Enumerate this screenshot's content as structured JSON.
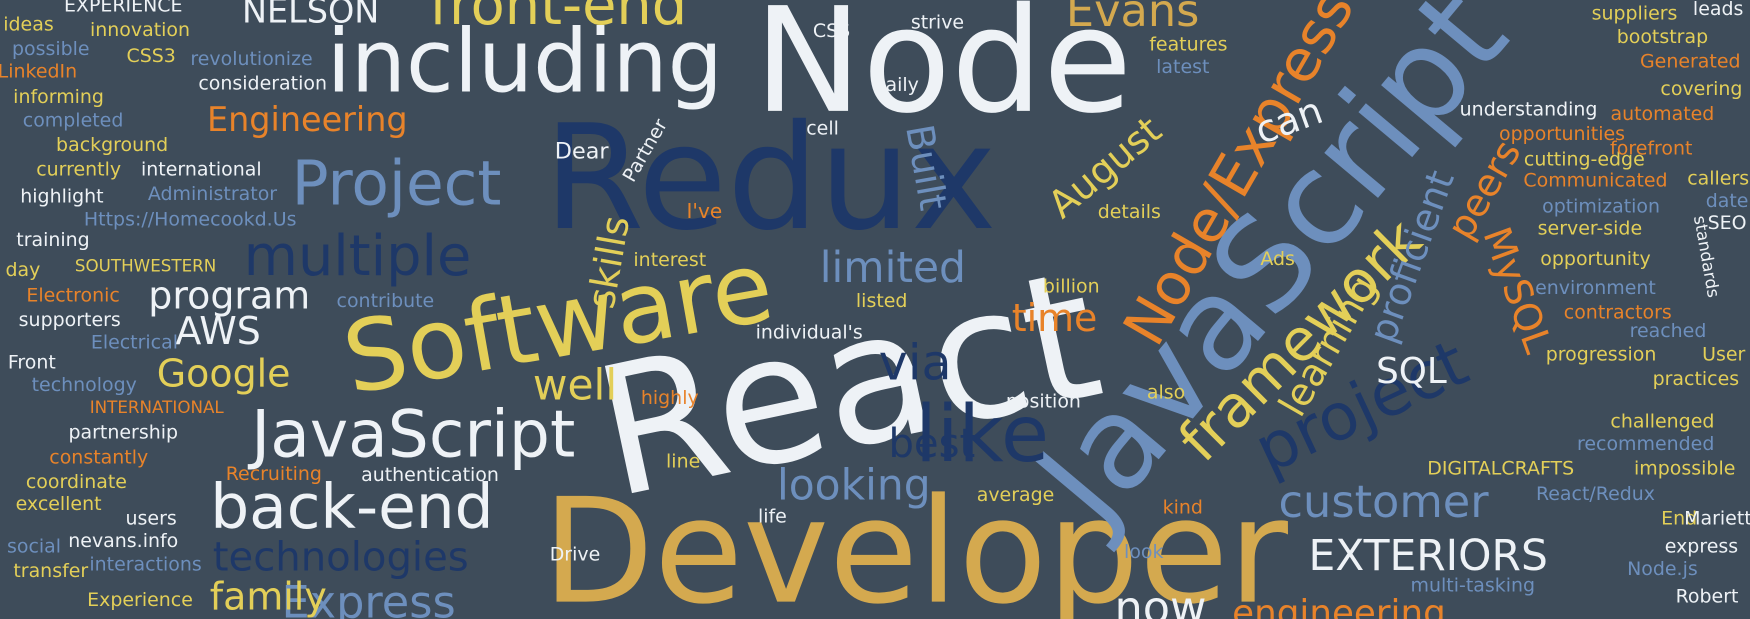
{
  "words": [
    "React",
    "Developer",
    "Redux",
    "Node",
    "JavaScript",
    "Software",
    "including",
    "JavaScript",
    "back-end",
    "Project",
    "multiple",
    "project",
    "framework",
    "Node/Express",
    "like",
    "customer",
    "EXTERIORS",
    "technologies",
    "Express",
    "family",
    "looking",
    "limited",
    "via",
    "best",
    "well",
    "time",
    "program",
    "AWS",
    "Google",
    "Engineering",
    "front-end",
    "skills",
    "Built",
    "August",
    "can",
    "SQL",
    "learning",
    "proficient",
    "peers",
    "MySQL",
    "now",
    "engineering",
    "Evans",
    "NELSON",
    "Dear",
    "I've",
    "Partner",
    "EXPERIENCE",
    "ideas",
    "innovation",
    "possible",
    "CSS3",
    "revolutionize",
    "LinkedIn",
    "consideration",
    "informing",
    "completed",
    "background",
    "currently",
    "international",
    "highlight",
    "Administrator",
    "Https://Homecookd.Us",
    "training",
    "day",
    "SOUTHWESTERN",
    "Electronic",
    "contribute",
    "supporters",
    "Electrical",
    "Front",
    "technology",
    "INTERNATIONAL",
    "partnership",
    "constantly",
    "coordinate",
    "excellent",
    "social",
    "nevans.info",
    "transfer",
    "interactions",
    "Experience",
    "Recruiting",
    "authentication",
    "users",
    "daily",
    "CSS",
    "strive",
    "cell",
    "interest",
    "individual's",
    "listed",
    "highly",
    "line",
    "Drive",
    "life",
    "average",
    "position",
    "also",
    "billion",
    "details",
    "Ads",
    "features",
    "latest",
    "look",
    "kind",
    "opportunities",
    "cutting-edge",
    "Communicated",
    "optimization",
    "server-side",
    "opportunity",
    "environment",
    "contractors",
    "reached",
    "progression",
    "User",
    "practices",
    "challenged",
    "recommended",
    "impossible",
    "DIGITALCRAFTS",
    "React/Redux",
    "End",
    "Marietta",
    "express",
    "Node.js",
    "Robert",
    "multi-tasking",
    "suppliers",
    "leads",
    "bootstrap",
    "Generated",
    "covering",
    "automated",
    "forefront",
    "callers",
    "date",
    "SEO",
    "understanding",
    "standards"
  ]
}
